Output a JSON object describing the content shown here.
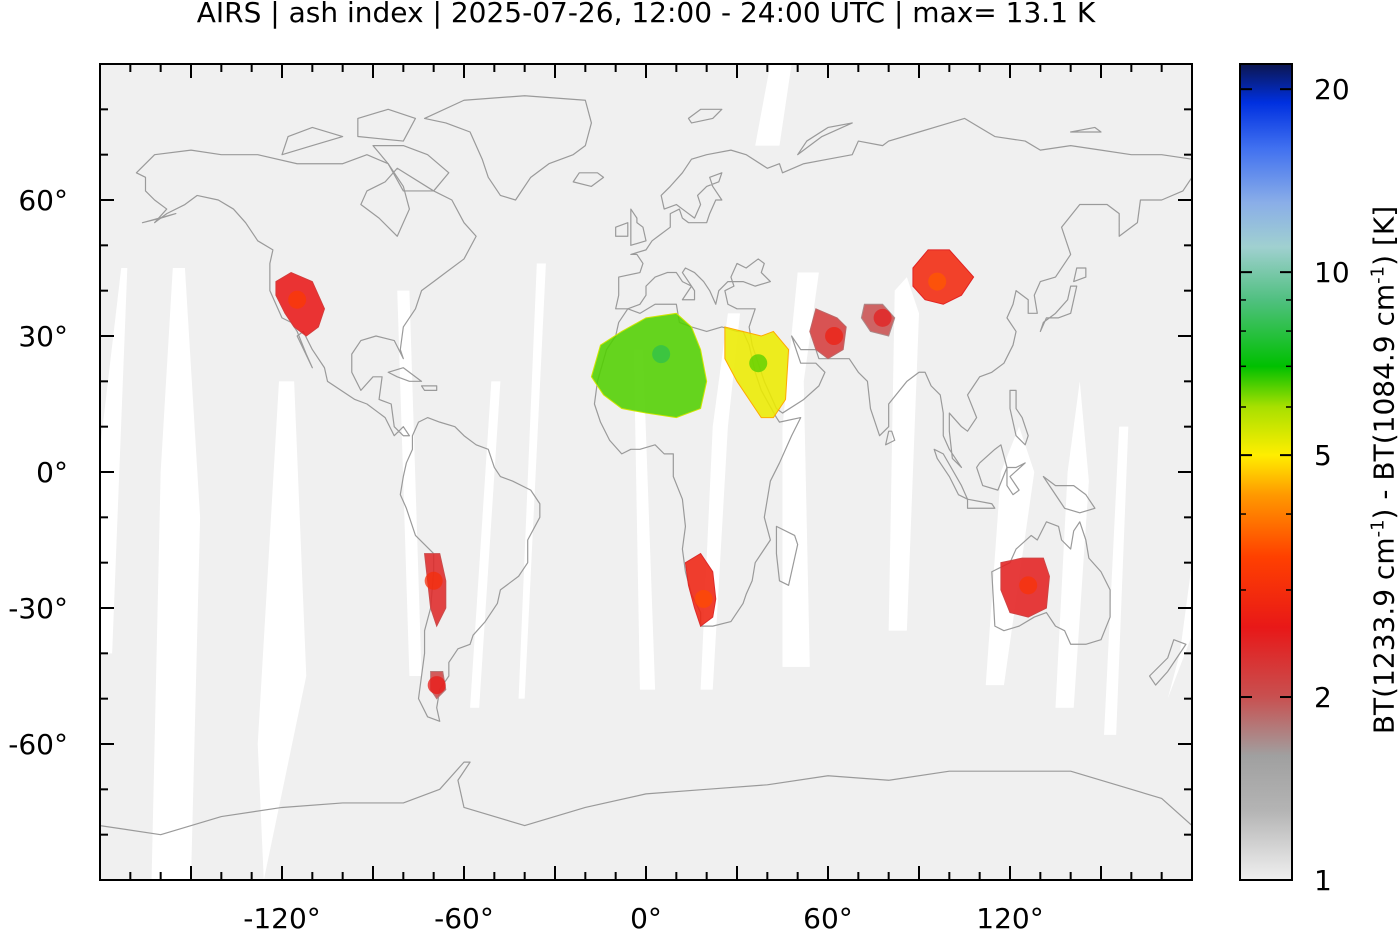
{
  "title": "AIRS | ash index | 2025-07-26, 12:00 - 24:00 UTC | max= 13.1 K",
  "map": {
    "projection": "equirectangular",
    "lon_range": [
      -180,
      180
    ],
    "lat_range": [
      -90,
      90
    ],
    "x_ticks": [
      {
        "value": -120,
        "label": "-120°"
      },
      {
        "value": -60,
        "label": "-60°"
      },
      {
        "value": 0,
        "label": "0°"
      },
      {
        "value": 60,
        "label": "60°"
      },
      {
        "value": 120,
        "label": "120°"
      }
    ],
    "y_ticks": [
      {
        "value": 60,
        "label": "60°"
      },
      {
        "value": 30,
        "label": "30°"
      },
      {
        "value": 0,
        "label": "0°"
      },
      {
        "value": -30,
        "label": "-30°"
      },
      {
        "value": -60,
        "label": "-60°"
      }
    ],
    "background_color": "#f0f0f0",
    "coastline_color": "#9a9a9a",
    "swath_gap_color": "#ffffff"
  },
  "colorbar": {
    "label_parts": [
      "BT(1233.9 cm",
      "-1",
      ") - BT(1084.9 cm",
      "-1",
      ") [K]"
    ],
    "scale": "log",
    "range": [
      1,
      22
    ],
    "ticks": [
      {
        "value": 1,
        "label": "1"
      },
      {
        "value": 2,
        "label": "2"
      },
      {
        "value": 5,
        "label": "5"
      },
      {
        "value": 10,
        "label": "10"
      },
      {
        "value": 20,
        "label": "20"
      }
    ],
    "stops": [
      {
        "value": 1,
        "color": "#f0f0f0"
      },
      {
        "value": 1.3,
        "color": "#b4b4b4"
      },
      {
        "value": 1.6,
        "color": "#a0a0a0"
      },
      {
        "value": 2,
        "color": "#c85050"
      },
      {
        "value": 2.6,
        "color": "#e81818"
      },
      {
        "value": 3.4,
        "color": "#ff4000"
      },
      {
        "value": 4.3,
        "color": "#ff9900"
      },
      {
        "value": 5,
        "color": "#ffee00"
      },
      {
        "value": 6,
        "color": "#a8e000"
      },
      {
        "value": 7,
        "color": "#00c000"
      },
      {
        "value": 9,
        "color": "#50c080"
      },
      {
        "value": 11,
        "color": "#a0d0d0"
      },
      {
        "value": 13,
        "color": "#8aaee8"
      },
      {
        "value": 16,
        "color": "#4070f0"
      },
      {
        "value": 19,
        "color": "#0030e0"
      },
      {
        "value": 22,
        "color": "#0c1650"
      }
    ]
  },
  "ash_regions": [
    {
      "name": "western-us",
      "lon": -115,
      "lat": 38,
      "value": 2.6
    },
    {
      "name": "andes",
      "lon": -70,
      "lat": -24,
      "value": 2.4
    },
    {
      "name": "patagonia",
      "lon": -69,
      "lat": -47,
      "value": 2.1
    },
    {
      "name": "sahara",
      "lon": 5,
      "lat": 26,
      "value": 6.5
    },
    {
      "name": "arabia-north-africa-east",
      "lon": 37,
      "lat": 24,
      "value": 5.2
    },
    {
      "name": "southern-africa",
      "lon": 19,
      "lat": -28,
      "value": 2.8
    },
    {
      "name": "central-asia",
      "lon": 96,
      "lat": 42,
      "value": 2.9
    },
    {
      "name": "australia",
      "lon": 126,
      "lat": -25,
      "value": 2.5
    },
    {
      "name": "middle-east-iran",
      "lon": 62,
      "lat": 30,
      "value": 2.2
    },
    {
      "name": "himalaya-west",
      "lon": 78,
      "lat": 34,
      "value": 2.0
    }
  ]
}
